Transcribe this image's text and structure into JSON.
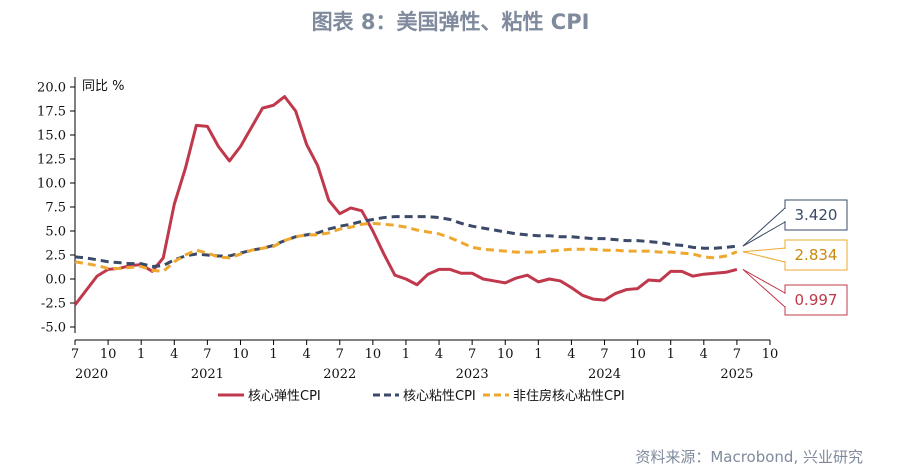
{
  "figure": {
    "title": "图表 8：美国弹性、粘性 CPI",
    "source": "资料来源：Macrobond, 兴业研究"
  },
  "chart_data": {
    "type": "line",
    "ylabel": "同比 %",
    "ylim": [
      -5,
      20
    ],
    "yticks": [
      "20.0",
      "17.5",
      "15.0",
      "12.5",
      "10.0",
      "7.5",
      "5.0",
      "2.5",
      "0.0",
      "-2.5",
      "-5.0"
    ],
    "x_start_month": "2020-07",
    "xlim_months": [
      0,
      63
    ],
    "month_ticks": [
      "7",
      "10",
      "1",
      "4",
      "7",
      "10",
      "1",
      "4",
      "7",
      "10",
      "1",
      "4",
      "7",
      "10",
      "1",
      "4",
      "7",
      "10",
      "1",
      "4",
      "7",
      "10"
    ],
    "year_labels": [
      "2020",
      "2021",
      "2022",
      "2023",
      "2024",
      "2025"
    ],
    "legend_position": "bottom",
    "grid": false,
    "series": [
      {
        "name": "核心弹性CPI",
        "color": "#c0384b",
        "style": "solid",
        "end_label": "0.997",
        "values": [
          -2.7,
          -1.2,
          0.3,
          1.0,
          1.1,
          1.4,
          1.5,
          0.8,
          2.2,
          7.8,
          11.5,
          16.0,
          15.9,
          13.8,
          12.3,
          13.8,
          15.8,
          17.8,
          18.1,
          19.0,
          17.5,
          14.0,
          11.8,
          8.2,
          6.8,
          7.4,
          7.1,
          5.0,
          2.6,
          0.4,
          0.0,
          -0.6,
          0.5,
          1.0,
          1.0,
          0.6,
          0.6,
          0.0,
          -0.2,
          -0.4,
          0.1,
          0.4,
          -0.3,
          0.0,
          -0.2,
          -0.9,
          -1.7,
          -2.1,
          -2.2,
          -1.5,
          -1.1,
          -1.0,
          -0.1,
          -0.2,
          0.8,
          0.8,
          0.3,
          0.5,
          0.6,
          0.7,
          0.997
        ]
      },
      {
        "name": "核心粘性CPI",
        "color": "#3a4a68",
        "style": "dashed",
        "end_label": "3.420",
        "values": [
          2.3,
          2.2,
          2.0,
          1.8,
          1.7,
          1.6,
          1.6,
          1.3,
          1.4,
          2.0,
          2.4,
          2.6,
          2.5,
          2.4,
          2.4,
          2.7,
          3.0,
          3.2,
          3.5,
          4.0,
          4.4,
          4.6,
          4.8,
          5.2,
          5.5,
          5.7,
          6.0,
          6.2,
          6.4,
          6.5,
          6.5,
          6.5,
          6.5,
          6.4,
          6.2,
          5.8,
          5.5,
          5.3,
          5.1,
          4.9,
          4.7,
          4.6,
          4.5,
          4.5,
          4.4,
          4.4,
          4.3,
          4.2,
          4.2,
          4.1,
          4.0,
          4.0,
          3.9,
          3.8,
          3.6,
          3.5,
          3.3,
          3.2,
          3.2,
          3.3,
          3.42
        ]
      },
      {
        "name": "非住房核心粘性CPI",
        "color": "#eea82f",
        "style": "dashed",
        "end_label": "2.834",
        "values": [
          1.8,
          1.6,
          1.4,
          1.1,
          1.1,
          1.2,
          1.3,
          0.9,
          0.8,
          1.8,
          2.5,
          3.0,
          2.7,
          2.3,
          2.2,
          2.6,
          3.0,
          3.2,
          3.4,
          4.0,
          4.4,
          4.6,
          4.6,
          4.8,
          5.2,
          5.4,
          5.7,
          5.8,
          5.7,
          5.6,
          5.4,
          5.1,
          4.9,
          4.7,
          4.3,
          3.8,
          3.3,
          3.1,
          3.0,
          2.9,
          2.8,
          2.8,
          2.8,
          2.9,
          3.0,
          3.1,
          3.1,
          3.1,
          3.0,
          3.0,
          2.9,
          2.9,
          2.9,
          2.8,
          2.8,
          2.7,
          2.6,
          2.3,
          2.2,
          2.4,
          2.834
        ]
      }
    ]
  }
}
